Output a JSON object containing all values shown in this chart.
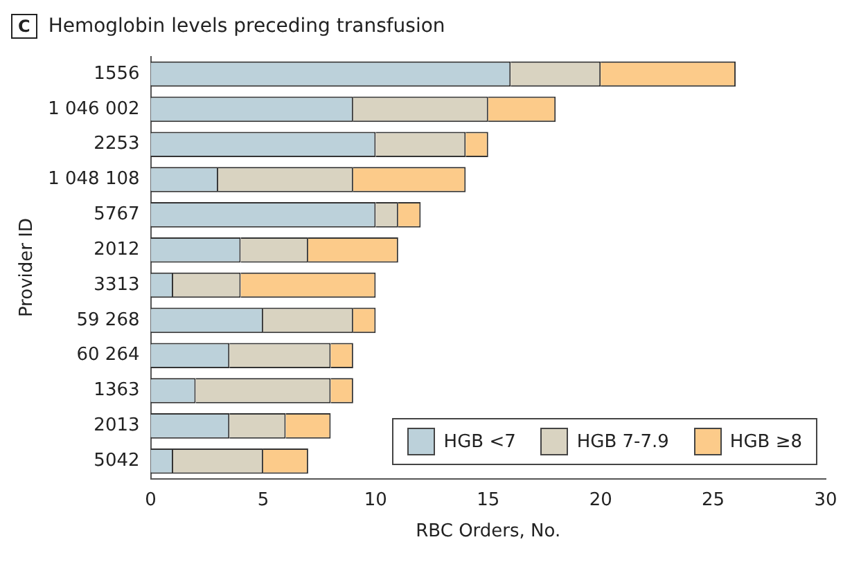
{
  "chart_data": {
    "type": "bar",
    "orientation": "horizontal",
    "stacked": true,
    "title": "Hemoglobin levels preceding transfusion",
    "annotations": [
      "C"
    ],
    "xlabel": "RBC Orders, No.",
    "ylabel": "Provider ID",
    "categories": [
      "1556",
      "1 046 002",
      "2253",
      "1 048 108",
      "5767",
      "2012",
      "3313",
      "59 268",
      "60 264",
      "1363",
      "2013",
      "5042"
    ],
    "series": [
      {
        "name": "HGB <7",
        "color": "#bcd1da",
        "values": [
          16,
          9,
          10,
          3,
          10,
          4,
          1,
          5,
          3.5,
          2,
          3.5,
          1
        ]
      },
      {
        "name": "HGB 7-7.9",
        "color": "#d9d3c1",
        "values": [
          4,
          6,
          4,
          6,
          1,
          3,
          3,
          4,
          4.5,
          6,
          2.5,
          4
        ]
      },
      {
        "name": "HGB ≥8",
        "color": "#fccb8a",
        "values": [
          6,
          3,
          1,
          5,
          1,
          4,
          6,
          1,
          1,
          1,
          2,
          2
        ]
      }
    ],
    "xlim": [
      0,
      30
    ],
    "xticks": [
      0,
      5,
      10,
      15,
      20,
      25,
      30
    ],
    "grid": false,
    "legend": "bottom right"
  }
}
